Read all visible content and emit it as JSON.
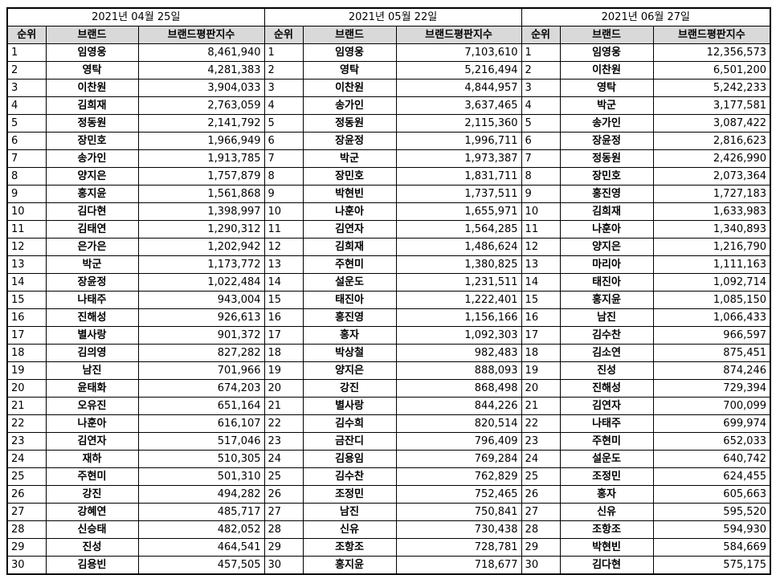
{
  "periods": [
    {
      "date": "2021년 04월 25일",
      "headers": {
        "rank": "순위",
        "brand": "브랜드",
        "score": "브랜드평판지수"
      },
      "rows": [
        {
          "rank": "1",
          "brand": "임영웅",
          "score": "8,461,940"
        },
        {
          "rank": "2",
          "brand": "영탁",
          "score": "4,281,383"
        },
        {
          "rank": "3",
          "brand": "이찬원",
          "score": "3,904,033"
        },
        {
          "rank": "4",
          "brand": "김희재",
          "score": "2,763,059"
        },
        {
          "rank": "5",
          "brand": "정동원",
          "score": "2,141,792"
        },
        {
          "rank": "6",
          "brand": "장민호",
          "score": "1,966,949"
        },
        {
          "rank": "7",
          "brand": "송가인",
          "score": "1,913,785"
        },
        {
          "rank": "8",
          "brand": "양지은",
          "score": "1,757,879"
        },
        {
          "rank": "9",
          "brand": "홍지윤",
          "score": "1,561,868"
        },
        {
          "rank": "10",
          "brand": "김다현",
          "score": "1,398,997"
        },
        {
          "rank": "11",
          "brand": "김태연",
          "score": "1,290,312"
        },
        {
          "rank": "12",
          "brand": "은가은",
          "score": "1,202,942"
        },
        {
          "rank": "13",
          "brand": "박군",
          "score": "1,173,772"
        },
        {
          "rank": "14",
          "brand": "장윤정",
          "score": "1,022,484"
        },
        {
          "rank": "15",
          "brand": "나태주",
          "score": "943,004"
        },
        {
          "rank": "16",
          "brand": "진해성",
          "score": "926,613"
        },
        {
          "rank": "17",
          "brand": "별사랑",
          "score": "901,372"
        },
        {
          "rank": "18",
          "brand": "김의영",
          "score": "827,282"
        },
        {
          "rank": "19",
          "brand": "남진",
          "score": "701,966"
        },
        {
          "rank": "20",
          "brand": "윤태화",
          "score": "674,203"
        },
        {
          "rank": "21",
          "brand": "오유진",
          "score": "651,164"
        },
        {
          "rank": "22",
          "brand": "나훈아",
          "score": "616,107"
        },
        {
          "rank": "23",
          "brand": "김연자",
          "score": "517,046"
        },
        {
          "rank": "24",
          "brand": "재하",
          "score": "510,305"
        },
        {
          "rank": "25",
          "brand": "주현미",
          "score": "501,310"
        },
        {
          "rank": "26",
          "brand": "강진",
          "score": "494,282"
        },
        {
          "rank": "27",
          "brand": "강혜연",
          "score": "485,717"
        },
        {
          "rank": "28",
          "brand": "신승태",
          "score": "482,052"
        },
        {
          "rank": "29",
          "brand": "진성",
          "score": "464,541"
        },
        {
          "rank": "30",
          "brand": "김용빈",
          "score": "457,505"
        }
      ]
    },
    {
      "date": "2021년 05월 22일",
      "headers": {
        "rank": "순위",
        "brand": "브랜드",
        "score": "브랜드평판지수"
      },
      "rows": [
        {
          "rank": "1",
          "brand": "임영웅",
          "score": "7,103,610"
        },
        {
          "rank": "2",
          "brand": "영탁",
          "score": "5,216,494"
        },
        {
          "rank": "3",
          "brand": "이찬원",
          "score": "4,844,957"
        },
        {
          "rank": "4",
          "brand": "송가인",
          "score": "3,637,465"
        },
        {
          "rank": "5",
          "brand": "정동원",
          "score": "2,115,360"
        },
        {
          "rank": "6",
          "brand": "장윤정",
          "score": "1,996,711"
        },
        {
          "rank": "7",
          "brand": "박군",
          "score": "1,973,387"
        },
        {
          "rank": "8",
          "brand": "장민호",
          "score": "1,831,711"
        },
        {
          "rank": "9",
          "brand": "박현빈",
          "score": "1,737,511"
        },
        {
          "rank": "10",
          "brand": "나훈아",
          "score": "1,655,971"
        },
        {
          "rank": "11",
          "brand": "김연자",
          "score": "1,564,285"
        },
        {
          "rank": "12",
          "brand": "김희재",
          "score": "1,486,624"
        },
        {
          "rank": "13",
          "brand": "주현미",
          "score": "1,380,825"
        },
        {
          "rank": "14",
          "brand": "설운도",
          "score": "1,231,511"
        },
        {
          "rank": "15",
          "brand": "태진아",
          "score": "1,222,401"
        },
        {
          "rank": "16",
          "brand": "홍진영",
          "score": "1,156,166"
        },
        {
          "rank": "17",
          "brand": "홍자",
          "score": "1,092,303"
        },
        {
          "rank": "18",
          "brand": "박상철",
          "score": "982,483"
        },
        {
          "rank": "19",
          "brand": "양지은",
          "score": "888,093"
        },
        {
          "rank": "20",
          "brand": "강진",
          "score": "868,498"
        },
        {
          "rank": "21",
          "brand": "별사랑",
          "score": "844,226"
        },
        {
          "rank": "22",
          "brand": "김수희",
          "score": "820,514"
        },
        {
          "rank": "23",
          "brand": "금잔디",
          "score": "796,409"
        },
        {
          "rank": "24",
          "brand": "김용임",
          "score": "769,284"
        },
        {
          "rank": "25",
          "brand": "김수찬",
          "score": "762,829"
        },
        {
          "rank": "26",
          "brand": "조정민",
          "score": "752,465"
        },
        {
          "rank": "27",
          "brand": "남진",
          "score": "750,841"
        },
        {
          "rank": "28",
          "brand": "신유",
          "score": "730,438"
        },
        {
          "rank": "29",
          "brand": "조항조",
          "score": "728,781"
        },
        {
          "rank": "30",
          "brand": "홍지윤",
          "score": "718,677"
        }
      ]
    },
    {
      "date": "2021년 06월 27일",
      "headers": {
        "rank": "순위",
        "brand": "브랜드",
        "score": "브랜드평판지수"
      },
      "rows": [
        {
          "rank": "1",
          "brand": "임영웅",
          "score": "12,356,573"
        },
        {
          "rank": "2",
          "brand": "이찬원",
          "score": "6,501,200"
        },
        {
          "rank": "3",
          "brand": "영탁",
          "score": "5,242,233"
        },
        {
          "rank": "4",
          "brand": "박군",
          "score": "3,177,581"
        },
        {
          "rank": "5",
          "brand": "송가인",
          "score": "3,087,422"
        },
        {
          "rank": "6",
          "brand": "장윤정",
          "score": "2,816,623"
        },
        {
          "rank": "7",
          "brand": "정동원",
          "score": "2,426,990"
        },
        {
          "rank": "8",
          "brand": "장민호",
          "score": "2,073,364"
        },
        {
          "rank": "9",
          "brand": "홍진영",
          "score": "1,727,183"
        },
        {
          "rank": "10",
          "brand": "김희재",
          "score": "1,633,983"
        },
        {
          "rank": "11",
          "brand": "나훈아",
          "score": "1,340,893"
        },
        {
          "rank": "12",
          "brand": "양지은",
          "score": "1,216,790"
        },
        {
          "rank": "13",
          "brand": "마리아",
          "score": "1,111,163"
        },
        {
          "rank": "14",
          "brand": "태진아",
          "score": "1,092,714"
        },
        {
          "rank": "15",
          "brand": "홍지윤",
          "score": "1,085,150"
        },
        {
          "rank": "16",
          "brand": "남진",
          "score": "1,066,433"
        },
        {
          "rank": "17",
          "brand": "김수찬",
          "score": "966,597"
        },
        {
          "rank": "18",
          "brand": "김소연",
          "score": "875,451"
        },
        {
          "rank": "19",
          "brand": "진성",
          "score": "874,246"
        },
        {
          "rank": "20",
          "brand": "진해성",
          "score": "729,394"
        },
        {
          "rank": "21",
          "brand": "김연자",
          "score": "700,099"
        },
        {
          "rank": "22",
          "brand": "나태주",
          "score": "699,974"
        },
        {
          "rank": "23",
          "brand": "주현미",
          "score": "652,033"
        },
        {
          "rank": "24",
          "brand": "설운도",
          "score": "640,742"
        },
        {
          "rank": "25",
          "brand": "조정민",
          "score": "624,455"
        },
        {
          "rank": "26",
          "brand": "홍자",
          "score": "605,663"
        },
        {
          "rank": "27",
          "brand": "신유",
          "score": "595,520"
        },
        {
          "rank": "28",
          "brand": "조항조",
          "score": "594,930"
        },
        {
          "rank": "29",
          "brand": "박현빈",
          "score": "584,669"
        },
        {
          "rank": "30",
          "brand": "김다현",
          "score": "575,175"
        }
      ]
    }
  ],
  "colors": {
    "header_bg": "#d9d9d9",
    "border": "#000000",
    "background": "#ffffff"
  }
}
